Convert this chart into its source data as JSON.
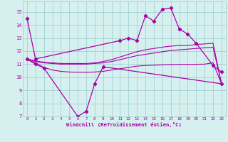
{
  "x": [
    0,
    1,
    2,
    3,
    4,
    5,
    6,
    7,
    8,
    9,
    10,
    11,
    12,
    13,
    14,
    15,
    16,
    17,
    18,
    19,
    20,
    21,
    22,
    23
  ],
  "curve_main": [
    14.5,
    11.4,
    null,
    null,
    null,
    null,
    null,
    null,
    null,
    null,
    null,
    12.8,
    13.0,
    12.8,
    14.7,
    14.3,
    15.2,
    15.3,
    13.7,
    13.3,
    12.6,
    null,
    10.9,
    10.4
  ],
  "curve_wc": [
    11.4,
    11.0,
    10.7,
    null,
    null,
    null,
    7.0,
    7.4,
    9.5,
    10.8,
    null,
    null,
    null,
    null,
    null,
    null,
    null,
    null,
    null,
    null,
    null,
    null,
    null,
    9.5
  ],
  "smooth1": [
    11.35,
    11.1,
    10.75,
    10.55,
    10.45,
    10.4,
    10.38,
    10.38,
    10.4,
    10.45,
    10.55,
    10.65,
    10.75,
    10.85,
    10.9,
    10.92,
    10.95,
    10.97,
    10.98,
    10.98,
    10.99,
    11.0,
    11.1,
    9.5
  ],
  "smooth2": [
    11.4,
    11.2,
    11.1,
    11.05,
    11.0,
    11.0,
    11.0,
    11.0,
    11.05,
    11.1,
    11.2,
    11.35,
    11.5,
    11.65,
    11.75,
    11.85,
    11.95,
    12.05,
    12.1,
    12.15,
    12.2,
    12.25,
    12.3,
    9.5
  ],
  "smooth3": [
    11.4,
    11.25,
    11.15,
    11.1,
    11.05,
    11.05,
    11.05,
    11.05,
    11.1,
    11.2,
    11.35,
    11.55,
    11.75,
    11.95,
    12.1,
    12.2,
    12.3,
    12.38,
    12.42,
    12.43,
    12.5,
    12.55,
    12.6,
    9.5
  ],
  "bg_color": "#d5f0ee",
  "line_color": "#aa00aa",
  "grid_color": "#99cccc",
  "xlabel": "Windchill (Refroidissement éolien,°C)",
  "ylim": [
    7,
    15.8
  ],
  "xlim": [
    -0.5,
    23.5
  ],
  "yticks": [
    7,
    8,
    9,
    10,
    11,
    12,
    13,
    14,
    15
  ],
  "xticks": [
    0,
    1,
    2,
    3,
    4,
    5,
    6,
    7,
    8,
    9,
    10,
    11,
    12,
    13,
    14,
    15,
    16,
    17,
    18,
    19,
    20,
    21,
    22,
    23
  ]
}
